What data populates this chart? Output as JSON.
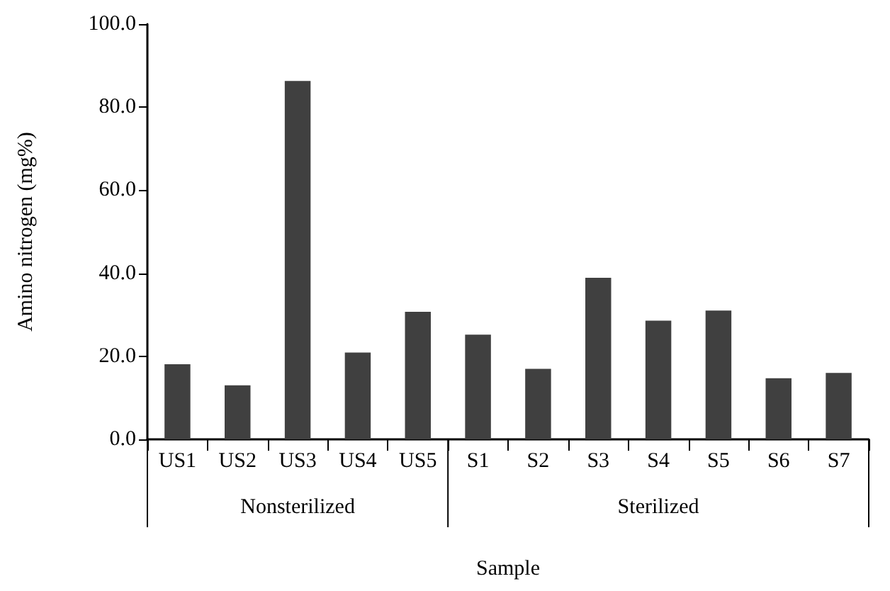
{
  "chart_data": {
    "type": "bar",
    "xlabel": "Sample",
    "ylabel": "Amino nitrogen (mg%)",
    "categories": [
      "US1",
      "US2",
      "US3",
      "US4",
      "US5",
      "S1",
      "S2",
      "S3",
      "S4",
      "S5",
      "S6",
      "S7"
    ],
    "values": [
      18.1,
      13.0,
      86.3,
      20.9,
      30.7,
      25.2,
      17.0,
      38.9,
      28.6,
      31.0,
      14.7,
      16.0
    ],
    "color": "#404040",
    "ylim": [
      0,
      100
    ],
    "yticks": [
      {
        "value": 0,
        "label": "0.0"
      },
      {
        "value": 20,
        "label": "20.0"
      },
      {
        "value": 40,
        "label": "40.0"
      },
      {
        "value": 60,
        "label": "60.0"
      },
      {
        "value": 80,
        "label": "80.0"
      },
      {
        "value": 100,
        "label": "100.0"
      }
    ],
    "annotations": [
      "Nonsterilized",
      "Sterilized"
    ],
    "grid": false
  }
}
